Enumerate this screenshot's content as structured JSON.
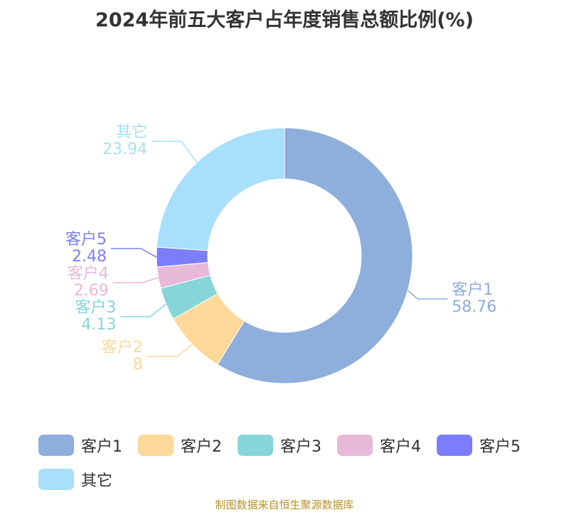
{
  "chart_data": {
    "type": "pie",
    "title": "2024年前五大客户占年度销售总额比例(%)",
    "categories": [
      "客户1",
      "客户2",
      "客户3",
      "客户4",
      "客户5",
      "其它"
    ],
    "values": [
      58.76,
      8,
      4.13,
      2.69,
      2.48,
      23.94
    ],
    "value_labels": [
      "58.76",
      "8",
      "4.13",
      "2.69",
      "2.48",
      "23.94"
    ],
    "colors": [
      "#8eaedc",
      "#fdd898",
      "#86d6d8",
      "#e8b8d8",
      "#7b7ef8",
      "#a8dffa"
    ],
    "legend_position": "bottom"
  },
  "source_note": "制图数据来自恒生聚源数据库"
}
